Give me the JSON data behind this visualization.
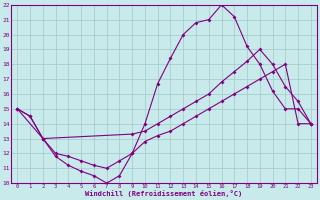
{
  "xlabel": "Windchill (Refroidissement éolien,°C)",
  "bg_color": "#c8eaea",
  "line_color": "#800080",
  "grid_color": "#a0c8c8",
  "xlim": [
    -0.5,
    23.5
  ],
  "ylim": [
    10,
    22
  ],
  "xticks": [
    0,
    1,
    2,
    3,
    4,
    5,
    6,
    7,
    8,
    9,
    10,
    11,
    12,
    13,
    14,
    15,
    16,
    17,
    18,
    19,
    20,
    21,
    22,
    23
  ],
  "yticks": [
    10,
    11,
    12,
    13,
    14,
    15,
    16,
    17,
    18,
    19,
    20,
    21,
    22
  ],
  "line1_x": [
    0,
    1,
    2,
    3,
    4,
    5,
    6,
    7,
    8,
    9,
    10,
    11,
    12,
    13,
    14,
    15,
    16,
    17,
    18,
    19,
    20,
    21,
    22,
    23
  ],
  "line1_y": [
    15,
    14.5,
    13,
    11.8,
    11.2,
    10.8,
    10.5,
    10,
    10.5,
    12,
    14,
    16.7,
    18.4,
    20,
    20.8,
    21,
    22,
    21.2,
    19.2,
    18,
    16.2,
    15,
    15,
    14
  ],
  "line2_x": [
    0,
    2,
    9,
    10,
    11,
    12,
    13,
    14,
    15,
    16,
    17,
    18,
    19,
    20,
    21,
    22,
    23
  ],
  "line2_y": [
    15,
    13,
    13.3,
    13.5,
    14,
    14.5,
    15,
    15.5,
    16,
    16.8,
    17.5,
    18.2,
    19,
    18,
    16.5,
    15.5,
    14
  ],
  "line3_x": [
    0,
    1,
    2,
    3,
    4,
    5,
    6,
    7,
    8,
    9,
    10,
    11,
    12,
    13,
    14,
    15,
    16,
    17,
    18,
    19,
    20,
    21,
    22,
    23
  ],
  "line3_y": [
    15,
    14.5,
    13,
    12,
    11.8,
    11.5,
    11.2,
    11,
    11.5,
    12,
    12.8,
    13.2,
    13.5,
    14,
    14.5,
    15,
    15.5,
    16,
    16.5,
    17,
    17.5,
    18,
    14,
    14
  ]
}
